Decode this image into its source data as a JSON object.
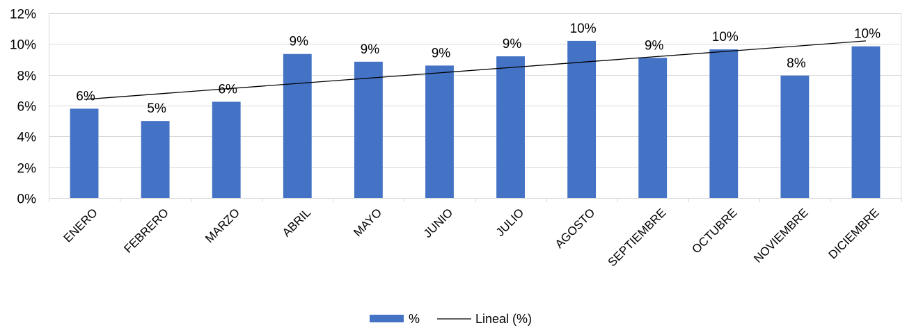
{
  "chart_data": {
    "type": "bar",
    "categories": [
      "ENERO",
      "FEBRERO",
      "MARZO",
      "ABRIL",
      "MAYO",
      "JUNIO",
      "JULIO",
      "AGOSTO",
      "SEPTIEMBRE",
      "OCTUBRE",
      "NOVIEMBRE",
      "DICIEMBRE"
    ],
    "series": [
      {
        "name": "%",
        "values": [
          5.8,
          5.0,
          6.25,
          9.35,
          8.85,
          8.6,
          9.2,
          10.2,
          9.1,
          9.65,
          7.95,
          9.85
        ],
        "data_labels": [
          "6%",
          "5%",
          "6%",
          "9%",
          "9%",
          "9%",
          "9%",
          "10%",
          "9%",
          "10%",
          "8%",
          "10%"
        ],
        "color": "#4472C4"
      }
    ],
    "trendline": {
      "name": "Lineal (%)",
      "type": "linear",
      "start": 6.4,
      "end": 10.2,
      "color": "#000000"
    },
    "yaxis": {
      "min": 0,
      "max": 12,
      "step": 2,
      "tick_labels": [
        "0%",
        "2%",
        "4%",
        "6%",
        "8%",
        "10%",
        "12%"
      ]
    },
    "grid": true,
    "legend": {
      "position": "bottom",
      "entries": [
        "%",
        "Lineal (%)"
      ]
    },
    "title": "",
    "xlabel": "",
    "ylabel": ""
  }
}
